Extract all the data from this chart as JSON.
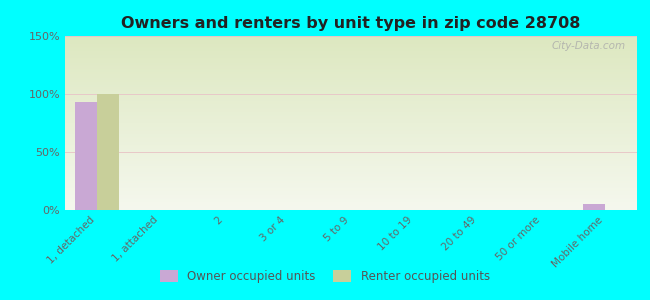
{
  "title": "Owners and renters by unit type in zip code 28708",
  "categories": [
    "1, detached",
    "1, attached",
    "2",
    "3 or 4",
    "5 to 9",
    "10 to 19",
    "20 to 49",
    "50 or more",
    "Mobile home"
  ],
  "owner_values": [
    93,
    0,
    0,
    0,
    0,
    0,
    0,
    0,
    5
  ],
  "renter_values": [
    100,
    0,
    0,
    0,
    0,
    0,
    0,
    0,
    0
  ],
  "owner_color": "#c9a8d4",
  "renter_color": "#c8cf9a",
  "background_color": "#00ffff",
  "grad_top": "#dde8c0",
  "grad_bottom": "#f5f8ee",
  "ylim": [
    0,
    150
  ],
  "yticks": [
    0,
    50,
    100,
    150
  ],
  "ytick_labels": [
    "0%",
    "50%",
    "100%",
    "150%"
  ],
  "bar_width": 0.35,
  "watermark": "City-Data.com",
  "legend_owner": "Owner occupied units",
  "legend_renter": "Renter occupied units"
}
